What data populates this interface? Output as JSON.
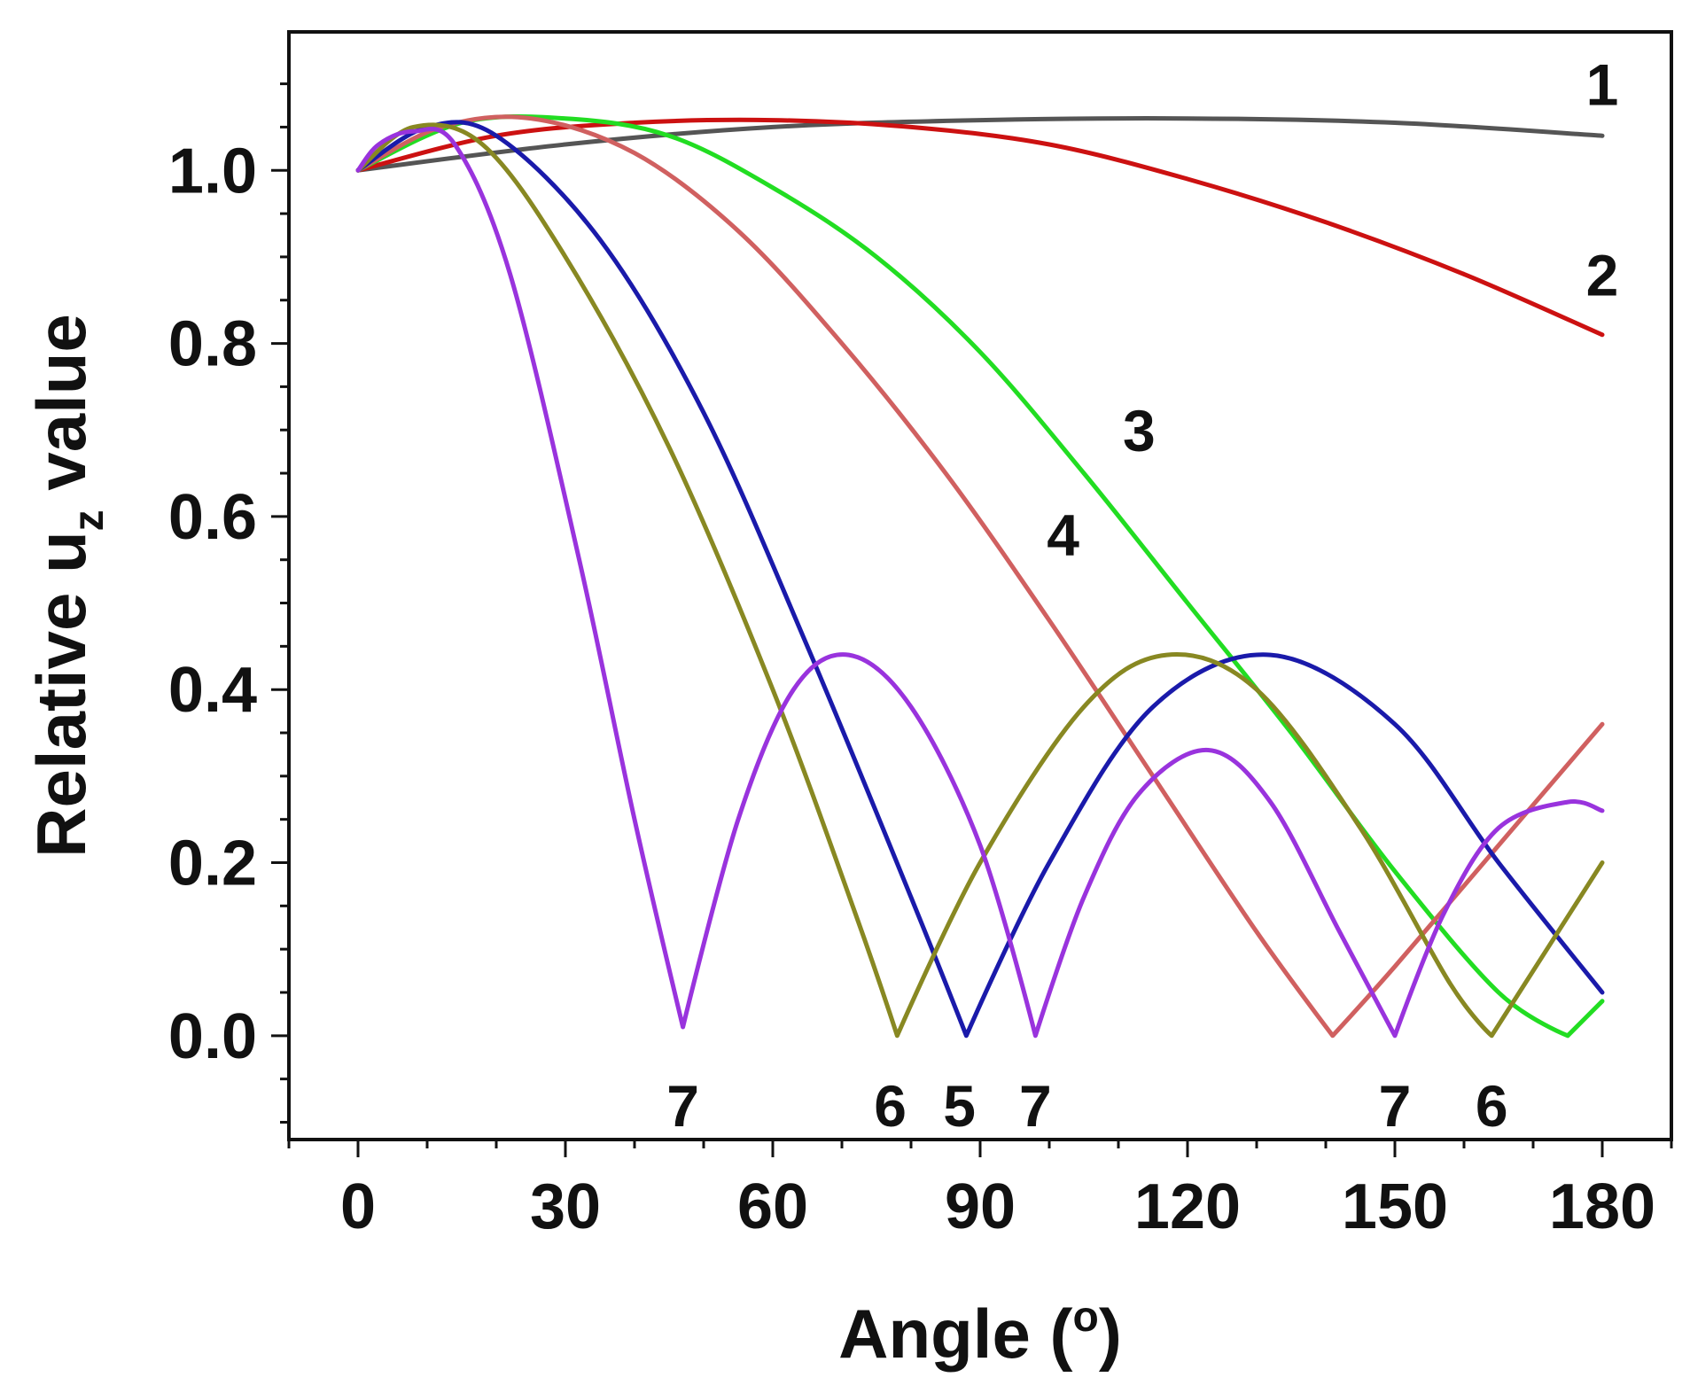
{
  "chart_data": {
    "type": "line",
    "xlabel": "Angle (",
    "xlabel_sup": "o",
    "xlabel_end": ")",
    "ylabel": "Relative u",
    "ylabel_sub": "z",
    "ylabel_end": " value",
    "xlim": [
      -10,
      190
    ],
    "ylim": [
      -0.12,
      1.16
    ],
    "x_ticks": [
      0,
      30,
      60,
      90,
      120,
      150,
      180
    ],
    "x_tick_labels": [
      "0",
      "30",
      "60",
      "90",
      "120",
      "150",
      "180"
    ],
    "y_ticks": [
      0.0,
      0.2,
      0.4,
      0.6,
      0.8,
      1.0
    ],
    "y_tick_labels": [
      "0.0",
      "0.2",
      "0.4",
      "0.6",
      "0.8",
      "1.0"
    ],
    "grid": false,
    "series": [
      {
        "name": "1",
        "color": "#555555",
        "x": [
          0,
          30,
          60,
          90,
          120,
          150,
          180
        ],
        "y": [
          1.0,
          1.03,
          1.05,
          1.058,
          1.06,
          1.055,
          1.04
        ]
      },
      {
        "name": "2",
        "color": "#cc1111",
        "x": [
          0,
          20,
          40,
          60,
          80,
          100,
          120,
          140,
          160,
          180
        ],
        "y": [
          1.0,
          1.04,
          1.055,
          1.058,
          1.05,
          1.03,
          0.99,
          0.94,
          0.88,
          0.81
        ]
      },
      {
        "name": "3",
        "color": "#22dd22",
        "x": [
          0,
          15,
          30,
          45,
          60,
          75,
          90,
          105,
          120,
          135,
          150,
          165,
          175,
          180
        ],
        "y": [
          1.0,
          1.055,
          1.06,
          1.04,
          0.98,
          0.9,
          0.79,
          0.65,
          0.5,
          0.35,
          0.19,
          0.05,
          0.0,
          0.04
        ]
      },
      {
        "name": "4",
        "color": "#d06060",
        "x": [
          0,
          12,
          25,
          40,
          55,
          70,
          85,
          100,
          115,
          130,
          141,
          150,
          165,
          180
        ],
        "y": [
          1.0,
          1.05,
          1.06,
          1.02,
          0.93,
          0.8,
          0.65,
          0.48,
          0.3,
          0.12,
          0.0,
          0.08,
          0.22,
          0.36
        ]
      },
      {
        "name": "5",
        "color": "#1a1aaa",
        "x": [
          0,
          10,
          20,
          35,
          50,
          65,
          80,
          88,
          100,
          115,
          132,
          150,
          165,
          180
        ],
        "y": [
          1.0,
          1.05,
          1.04,
          0.92,
          0.72,
          0.45,
          0.16,
          0.0,
          0.2,
          0.38,
          0.44,
          0.36,
          0.2,
          0.05
        ]
      },
      {
        "name": "6",
        "color": "#888822",
        "x": [
          0,
          8,
          18,
          30,
          45,
          60,
          72,
          78,
          90,
          105,
          117,
          130,
          145,
          158,
          164,
          172,
          180
        ],
        "y": [
          1.0,
          1.05,
          1.03,
          0.9,
          0.68,
          0.4,
          0.14,
          0.0,
          0.2,
          0.38,
          0.44,
          0.4,
          0.24,
          0.06,
          0.0,
          0.1,
          0.2
        ]
      },
      {
        "name": "7",
        "color": "#9933dd",
        "x": [
          0,
          3,
          8,
          14,
          22,
          32,
          40,
          47,
          55,
          63,
          71,
          80,
          90,
          98,
          105,
          113,
          123,
          132,
          142,
          150,
          157,
          165,
          175,
          180
        ],
        "y": [
          1.0,
          1.03,
          1.045,
          1.03,
          0.88,
          0.55,
          0.25,
          0.01,
          0.25,
          0.4,
          0.44,
          0.38,
          0.22,
          0.0,
          0.16,
          0.28,
          0.33,
          0.27,
          0.12,
          0.0,
          0.14,
          0.24,
          0.27,
          0.26
        ]
      }
    ],
    "annotations": [
      {
        "text": "1",
        "x": 180,
        "y": 1.1
      },
      {
        "text": "2",
        "x": 180,
        "y": 0.88
      },
      {
        "text": "3",
        "x": 113,
        "y": 0.7
      },
      {
        "text": "4",
        "x": 102,
        "y": 0.58
      },
      {
        "text": "7",
        "x": 47,
        "y": -0.08
      },
      {
        "text": "6",
        "x": 77,
        "y": -0.08
      },
      {
        "text": "5",
        "x": 87,
        "y": -0.08
      },
      {
        "text": "7",
        "x": 98,
        "y": -0.08
      },
      {
        "text": "7",
        "x": 150,
        "y": -0.08
      },
      {
        "text": "6",
        "x": 164,
        "y": -0.08
      }
    ]
  }
}
